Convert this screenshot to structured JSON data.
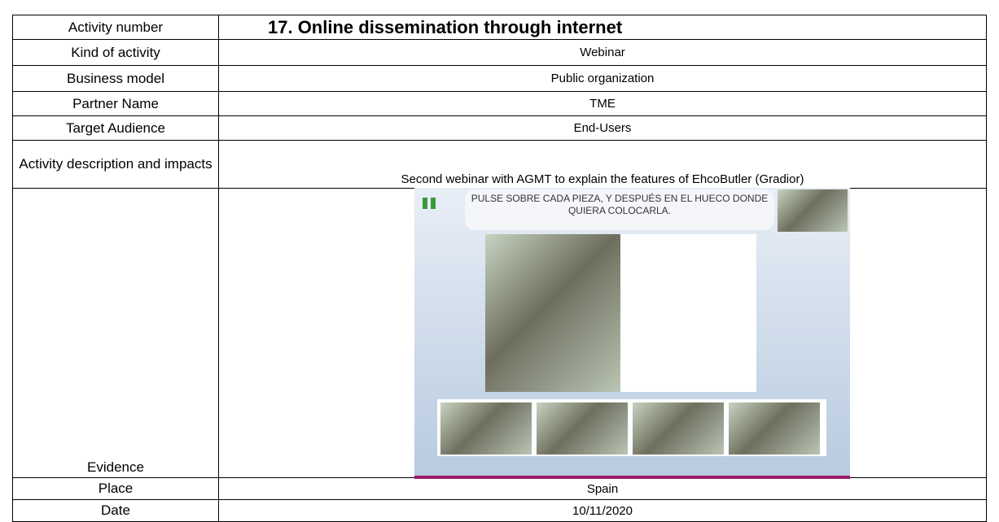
{
  "table": {
    "rows": [
      {
        "label": "Activity number",
        "value": "17.  Online dissemination through internet"
      },
      {
        "label": "Kind of activity",
        "value": "Webinar"
      },
      {
        "label": "Business model",
        "value": "Public organization"
      },
      {
        "label": "Partner Name",
        "value": "TME"
      },
      {
        "label": "Target Audience",
        "value": "End-Users"
      },
      {
        "label": "Activity description and impacts",
        "value": "Second webinar with AGMT to explain the features of EhcoButler (Gradior)"
      },
      {
        "label": "Evidence"
      },
      {
        "label": "Place",
        "value": "Spain"
      },
      {
        "label": "Date",
        "value": "10/11/2020"
      }
    ]
  },
  "evidence_image": {
    "instruction": "PULSE SOBRE CADA PIEZA, Y DESPUÉS EN EL HUECO DONDE QUIERA COLOCARLA."
  }
}
